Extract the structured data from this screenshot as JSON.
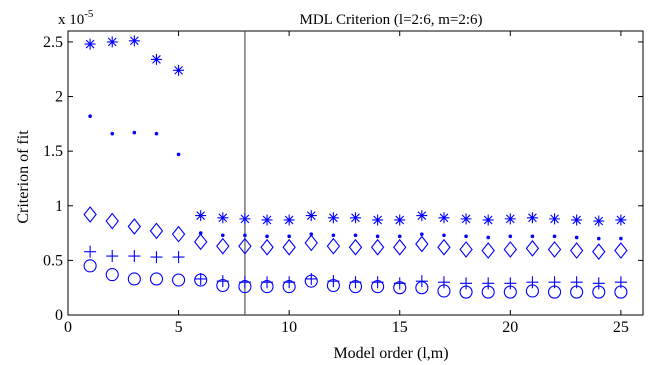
{
  "chart_data": {
    "type": "scatter",
    "title": "MDL Criterion (l=2:6, m=2:6)",
    "xlabel": "Model order (l,m)",
    "ylabel": "Criterion of fit",
    "y_exponent_label": "x 10",
    "y_exponent_power": "-5",
    "xlim": [
      0,
      26
    ],
    "ylim": [
      0,
      2.6
    ],
    "xticks": [
      0,
      5,
      10,
      15,
      20,
      25
    ],
    "xtick_labels": [
      "0",
      "5",
      "10",
      "15",
      "20",
      "25"
    ],
    "yticks": [
      0,
      0.5,
      1,
      1.5,
      2,
      2.5
    ],
    "ytick_labels": [
      "0",
      "0.5",
      "1",
      "1.5",
      "2",
      "2.5"
    ],
    "grid": false,
    "legend": false,
    "vline_x": 8,
    "color": "#0000ff",
    "series": [
      {
        "marker": "asterisk",
        "x": [
          1,
          2,
          3,
          4,
          5,
          6,
          7,
          8,
          9,
          10,
          11,
          12,
          13,
          14,
          15,
          16,
          17,
          18,
          19,
          20,
          21,
          22,
          23,
          24,
          25
        ],
        "values": [
          2.48,
          2.5,
          2.51,
          2.34,
          2.24,
          0.91,
          0.89,
          0.88,
          0.87,
          0.87,
          0.91,
          0.89,
          0.89,
          0.87,
          0.87,
          0.91,
          0.89,
          0.88,
          0.87,
          0.88,
          0.89,
          0.88,
          0.87,
          0.86,
          0.87
        ]
      },
      {
        "marker": "point",
        "x": [
          1,
          2,
          3,
          4,
          5,
          6,
          7,
          8,
          9,
          10,
          11,
          12,
          13,
          14,
          15,
          16,
          17,
          18,
          19,
          20,
          21,
          22,
          23,
          24,
          25
        ],
        "values": [
          1.82,
          1.66,
          1.67,
          1.66,
          1.47,
          0.75,
          0.73,
          0.73,
          0.72,
          0.72,
          0.74,
          0.73,
          0.73,
          0.72,
          0.72,
          0.74,
          0.73,
          0.72,
          0.71,
          0.72,
          0.72,
          0.72,
          0.71,
          0.7,
          0.7
        ]
      },
      {
        "marker": "diamond",
        "x": [
          1,
          2,
          3,
          4,
          5,
          6,
          7,
          8,
          9,
          10,
          11,
          12,
          13,
          14,
          15,
          16,
          17,
          18,
          19,
          20,
          21,
          22,
          23,
          24,
          25
        ],
        "values": [
          0.92,
          0.86,
          0.81,
          0.77,
          0.74,
          0.67,
          0.63,
          0.63,
          0.62,
          0.62,
          0.66,
          0.63,
          0.62,
          0.62,
          0.62,
          0.65,
          0.62,
          0.6,
          0.59,
          0.6,
          0.61,
          0.6,
          0.59,
          0.58,
          0.59
        ]
      },
      {
        "marker": "plus",
        "x": [
          1,
          2,
          3,
          4,
          5,
          6,
          7,
          8,
          9,
          10,
          11,
          12,
          13,
          14,
          15,
          16,
          17,
          18,
          19,
          20,
          21,
          22,
          23,
          24,
          25
        ],
        "values": [
          0.58,
          0.54,
          0.54,
          0.53,
          0.53,
          0.33,
          0.31,
          0.3,
          0.3,
          0.3,
          0.33,
          0.31,
          0.3,
          0.3,
          0.29,
          0.31,
          0.3,
          0.29,
          0.29,
          0.29,
          0.3,
          0.3,
          0.3,
          0.29,
          0.3
        ]
      },
      {
        "marker": "circle",
        "x": [
          1,
          2,
          3,
          4,
          5,
          6,
          7,
          8,
          9,
          10,
          11,
          12,
          13,
          14,
          15,
          16,
          17,
          18,
          19,
          20,
          21,
          22,
          23,
          24,
          25
        ],
        "values": [
          0.45,
          0.37,
          0.33,
          0.33,
          0.32,
          0.32,
          0.27,
          0.26,
          0.26,
          0.26,
          0.31,
          0.27,
          0.26,
          0.26,
          0.25,
          0.25,
          0.22,
          0.21,
          0.21,
          0.21,
          0.22,
          0.21,
          0.21,
          0.21,
          0.21
        ]
      }
    ]
  }
}
